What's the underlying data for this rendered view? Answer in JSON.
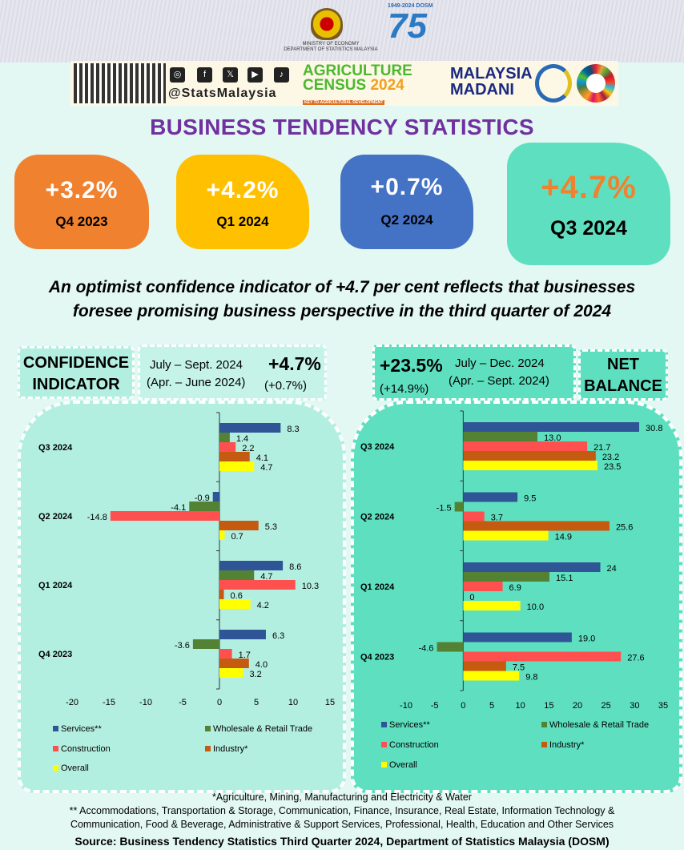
{
  "header": {
    "ministry_line1": "MINISTRY OF ECONOMY",
    "ministry_line2": "DEPARTMENT OF STATISTICS MALAYSIA",
    "dosm_years": "1949-2024 DOSM",
    "dosm_number": "75",
    "social_handle": "@StatsMalaysia",
    "agri_line1": "AGRICULTURE",
    "agri_line2": "CENSUS",
    "agri_year": "2024",
    "agri_tagline": "KEY TO AGRICULTURAL DEVELOPMENT",
    "madani_line1": "MALAYSIA",
    "madani_line2": "MADANI",
    "social_icons": [
      "instagram-icon",
      "facebook-icon",
      "x-icon",
      "youtube-icon",
      "tiktok-icon"
    ]
  },
  "title": "BUSINESS TENDENCY STATISTICS",
  "cards": [
    {
      "value": "+3.2%",
      "quarter": "Q4 2023",
      "color": "#f0812f"
    },
    {
      "value": "+4.2%",
      "quarter": "Q1 2024",
      "color": "#ffc000"
    },
    {
      "value": "+0.7%",
      "quarter": "Q2 2024",
      "color": "#4472c4"
    },
    {
      "value": "+4.7%",
      "quarter": "Q3 2024",
      "color": "#5ee0c0"
    }
  ],
  "subtitle_line1": "An optimist confidence indicator of +4.7 per cent reflects that businesses",
  "subtitle_line2": "foresee promising business perspective in the third quarter of 2024",
  "confidence": {
    "label_line1": "CONFIDENCE",
    "label_line2": "INDICATOR",
    "period": "July – Sept. 2024",
    "prev_period": "(Apr. – June 2024)",
    "value": "+4.7%",
    "prev_value": "(+0.7%)"
  },
  "net_balance": {
    "label_line1": "NET",
    "label_line2": "BALANCE",
    "period": "July – Dec. 2024",
    "prev_period": "(Apr. – Sept. 2024)",
    "value": "+23.5%",
    "prev_value": "(+14.9%)"
  },
  "legend": [
    "Services**",
    "Wholesale & Retail Trade",
    "Construction",
    "Industry*",
    "Overall"
  ],
  "chart_data": [
    {
      "type": "bar",
      "orientation": "horizontal",
      "title": "Confidence Indicator",
      "categories": [
        "Q3 2024",
        "Q2 2024",
        "Q1 2024",
        "Q4 2023"
      ],
      "xlim": [
        -20,
        15
      ],
      "xticks": [
        -20,
        -15,
        -10,
        -5,
        0,
        5,
        10,
        15
      ],
      "series": [
        {
          "name": "Services**",
          "color": "#2f5597",
          "values": [
            8.3,
            -0.9,
            8.6,
            6.3
          ],
          "labels": [
            "8.3",
            "-0.9",
            "8.6",
            "6.3"
          ]
        },
        {
          "name": "Wholesale & Retail Trade",
          "color": "#548235",
          "values": [
            1.4,
            -4.1,
            4.7,
            -3.6
          ],
          "labels": [
            "1.4",
            "-4.1",
            "4.7",
            "-3.6"
          ]
        },
        {
          "name": "Construction",
          "color": "#ff5050",
          "values": [
            2.2,
            -14.8,
            10.3,
            1.7
          ],
          "labels": [
            "2.2",
            "-14.8",
            "10.3",
            "1.7"
          ]
        },
        {
          "name": "Industry*",
          "color": "#c55a11",
          "values": [
            4.1,
            5.3,
            0.6,
            4.0
          ],
          "labels": [
            "4.1",
            "5.3",
            "0.6",
            "4.0"
          ]
        },
        {
          "name": "Overall",
          "color": "#ffff00",
          "values": [
            4.7,
            0.7,
            4.2,
            3.2
          ],
          "labels": [
            "4.7",
            "0.7",
            "4.2",
            "3.2"
          ]
        }
      ]
    },
    {
      "type": "bar",
      "orientation": "horizontal",
      "title": "Net Balance",
      "categories": [
        "Q3 2024",
        "Q2 2024",
        "Q1 2024",
        "Q4 2023"
      ],
      "xlim": [
        -10,
        35
      ],
      "xticks": [
        -10,
        -5,
        0,
        5,
        10,
        15,
        20,
        25,
        30,
        35
      ],
      "series": [
        {
          "name": "Services**",
          "color": "#2f5597",
          "values": [
            30.8,
            9.5,
            24,
            19.0
          ],
          "labels": [
            "30.8",
            "9.5",
            "24",
            "19.0"
          ]
        },
        {
          "name": "Wholesale & Retail Trade",
          "color": "#548235",
          "values": [
            13.0,
            -1.5,
            15.1,
            -4.6
          ],
          "labels": [
            "13.0",
            "-1.5",
            "15.1",
            "-4.6"
          ]
        },
        {
          "name": "Construction",
          "color": "#ff5050",
          "values": [
            21.7,
            3.7,
            6.9,
            27.6
          ],
          "labels": [
            "21.7",
            "3.7",
            "6.9",
            "27.6"
          ]
        },
        {
          "name": "Industry*",
          "color": "#c55a11",
          "values": [
            23.2,
            25.6,
            0,
            7.5
          ],
          "labels": [
            "23.2",
            "25.6",
            "0",
            "7.5"
          ]
        },
        {
          "name": "Overall",
          "color": "#ffff00",
          "values": [
            23.5,
            14.9,
            10.0,
            9.8
          ],
          "labels": [
            "23.5",
            "14.9",
            "10.0",
            "9.8"
          ]
        }
      ]
    }
  ],
  "footnotes": {
    "industry": "*Agriculture, Mining, Manufacturing and  Electricity & Water",
    "services_line1": "** Accommodations, Transportation & Storage, Communication, Finance, Insurance, Real Estate, Information Technology &",
    "services_line2": "Communication, Food & Beverage, Administrative & Support Services, Professional, Health, Education and Other Services",
    "source": "Source: Business Tendency Statistics Third Quarter 2024, Department of Statistics Malaysia (DOSM)"
  }
}
